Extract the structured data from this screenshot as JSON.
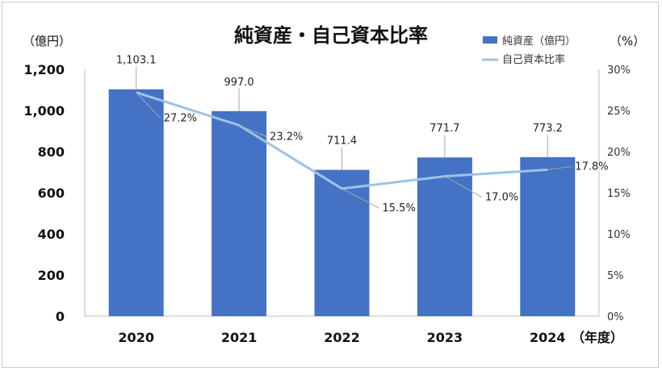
{
  "chart_data": {
    "type": "bar",
    "title": "純資産・自己資本比率",
    "categories": [
      "2020",
      "2021",
      "2022",
      "2023",
      "2024"
    ],
    "x_unit": "（年度）",
    "y_unit": "（億円）",
    "y2_unit": "（%）",
    "ylim": [
      0,
      1200
    ],
    "y_ticks": [
      "0",
      "200",
      "400",
      "600",
      "800",
      "1,000",
      "1,200"
    ],
    "y2lim": [
      0,
      30
    ],
    "y2_ticks": [
      "0%",
      "5%",
      "10%",
      "15%",
      "20%",
      "25%",
      "30%"
    ],
    "grid": false,
    "legend_position": "top-right",
    "series": [
      {
        "name": "純資産（億円）",
        "type": "bar",
        "axis": "left",
        "color": "#4472C4",
        "values": [
          1103.1,
          997.0,
          711.4,
          771.7,
          773.2
        ],
        "labels": [
          "1,103.1",
          "997.0",
          "711.4",
          "771.7",
          "773.2"
        ]
      },
      {
        "name": "自己資本比率",
        "type": "line",
        "axis": "right",
        "color": "#9DC3E6",
        "values": [
          27.2,
          23.2,
          15.5,
          17.0,
          17.8
        ],
        "labels": [
          "27.2%",
          "23.2%",
          "15.5%",
          "17.0%",
          "17.8%"
        ]
      }
    ]
  }
}
